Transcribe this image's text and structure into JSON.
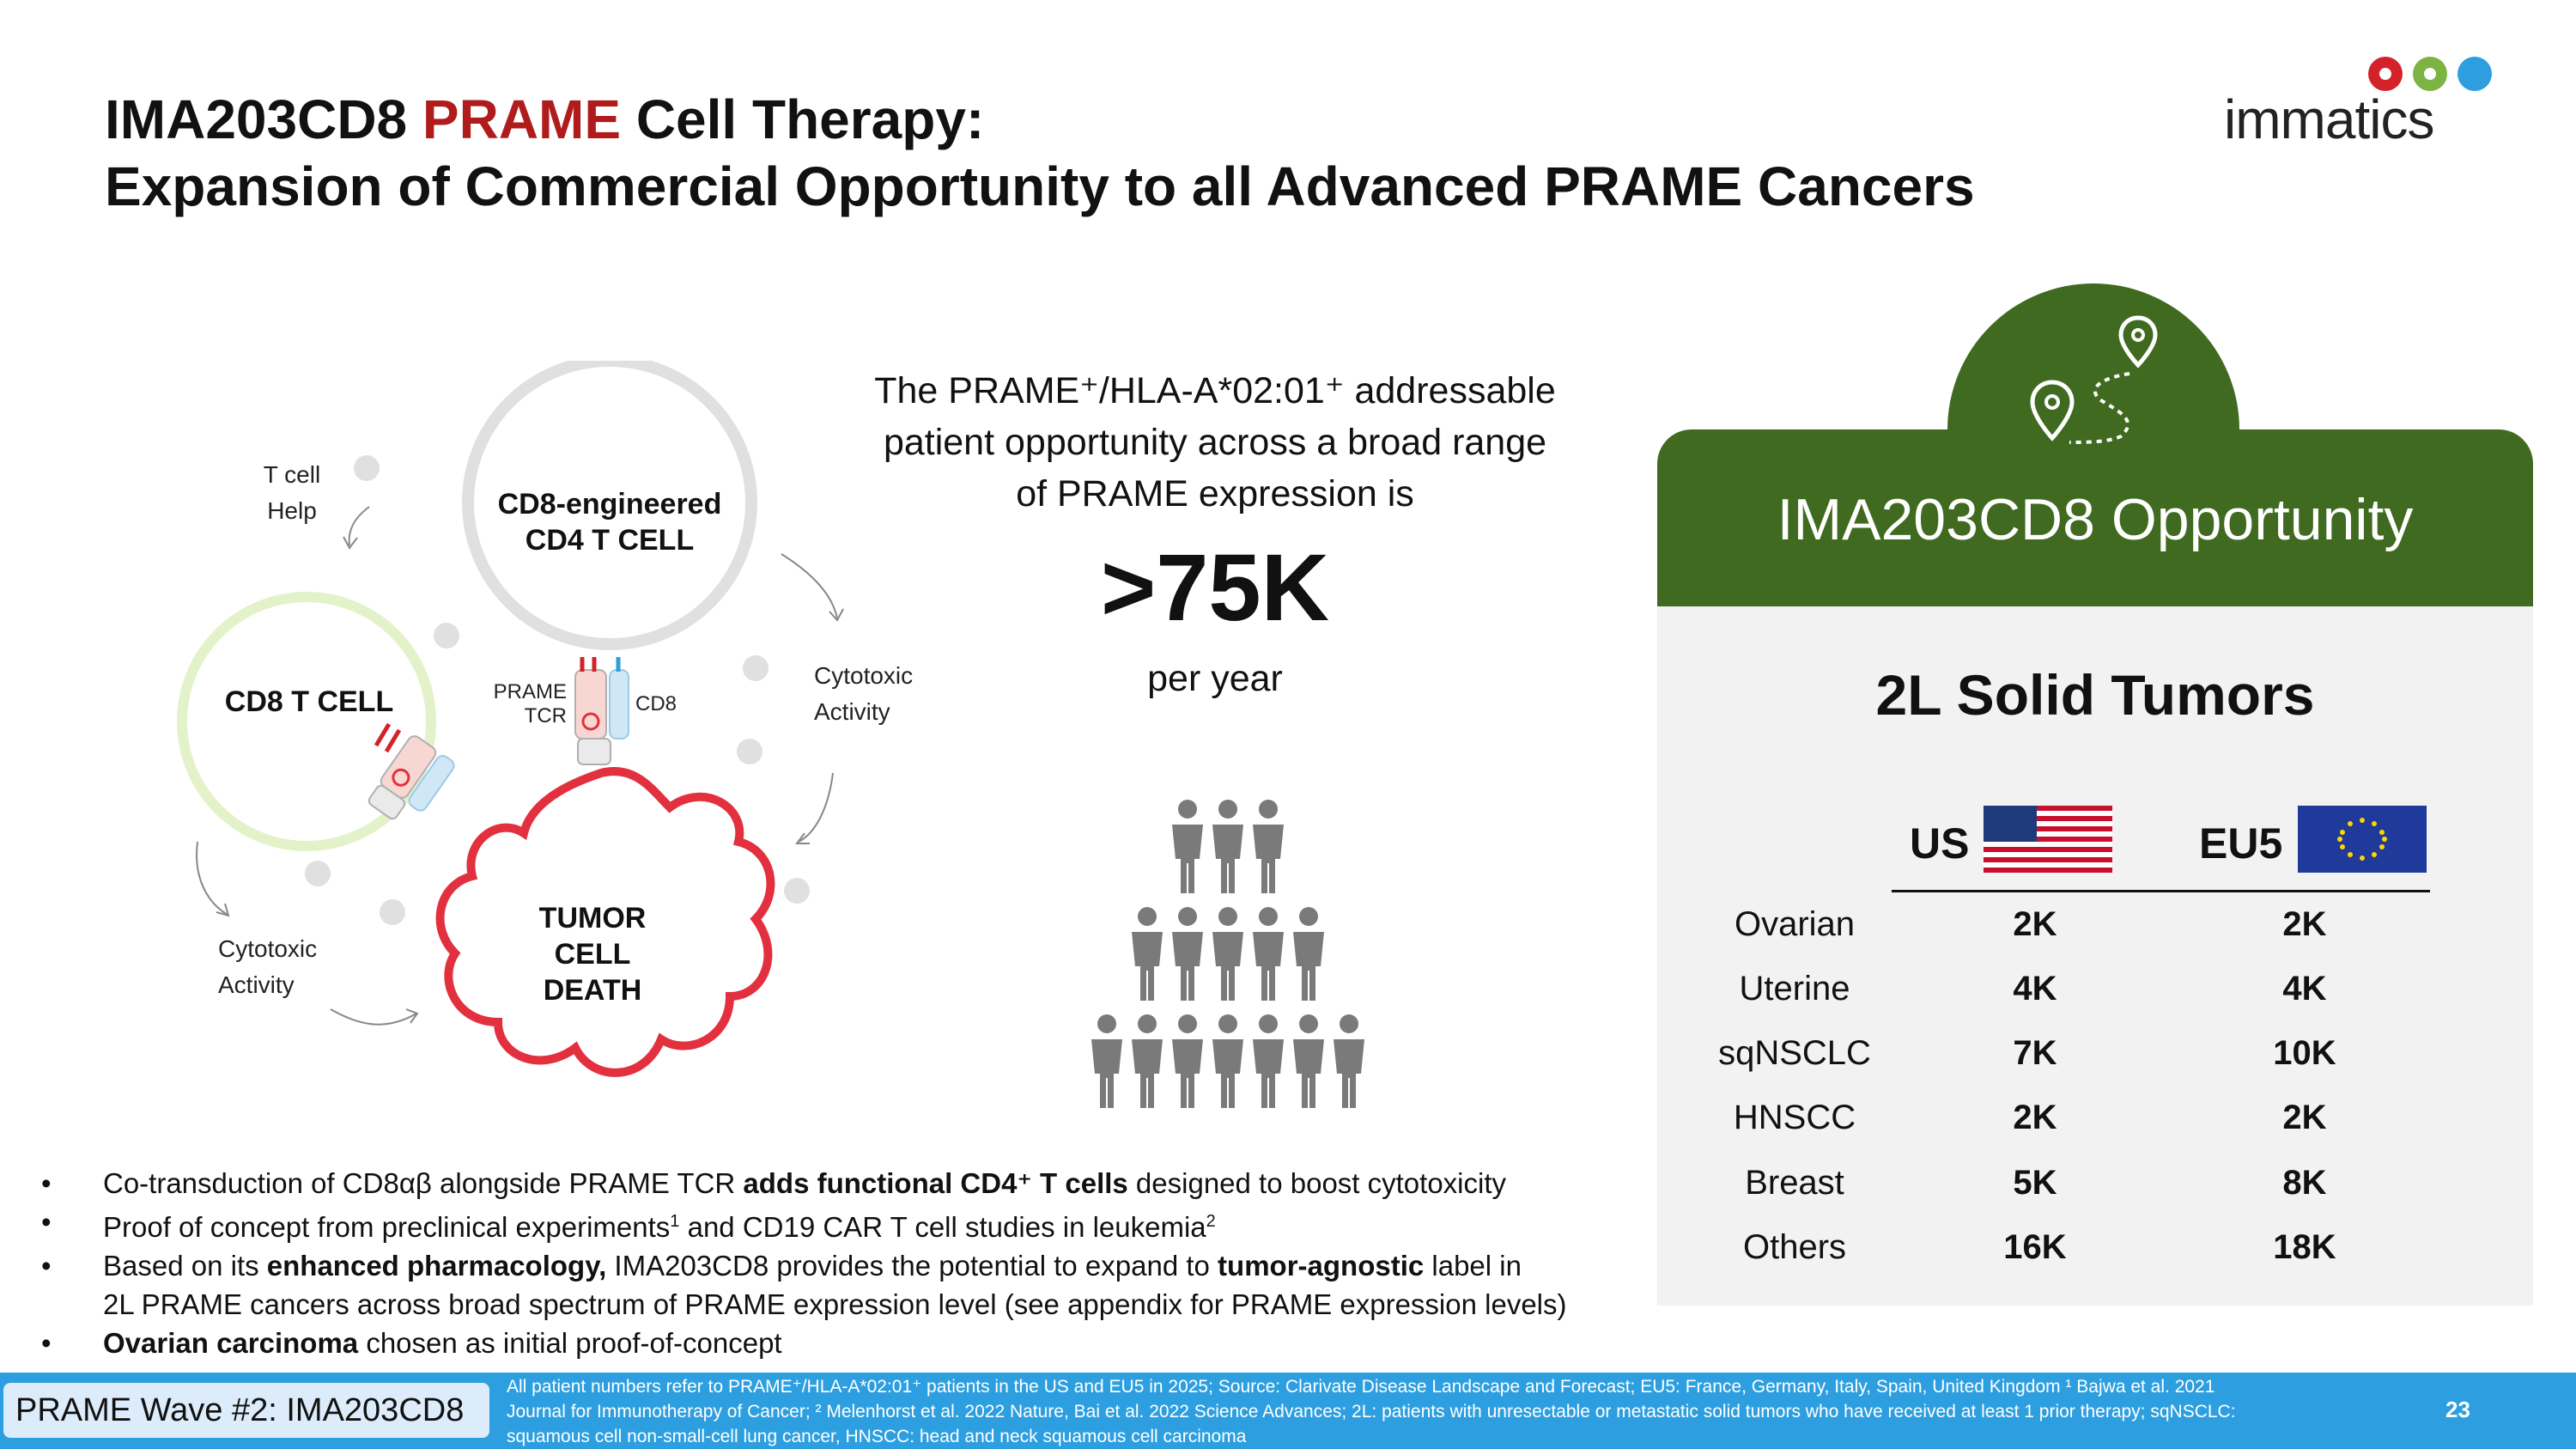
{
  "title": {
    "line1_pre": "IMA203CD8 ",
    "line1_accent": "PRAME",
    "line1_post": " Cell Therapy:",
    "line2": "Expansion of Commercial Opportunity to all Advanced PRAME Cancers"
  },
  "logo": {
    "text": "immatics"
  },
  "diagram": {
    "cd4_cell": [
      "CD8-engineered",
      "CD4 T CELL"
    ],
    "cd8_cell": "CD8 T CELL",
    "tumor": [
      "TUMOR CELL",
      "DEATH"
    ],
    "t_help": [
      "T cell",
      "Help"
    ],
    "cytotoxic_right": [
      "Cytotoxic",
      "Activity"
    ],
    "cytotoxic_left": [
      "Cytotoxic",
      "Activity"
    ],
    "prame_tcr": [
      "PRAME",
      "TCR"
    ],
    "cd8_label": "CD8"
  },
  "stats": {
    "intro_line1": "The PRAME⁺/HLA-A*02:01⁺ addressable",
    "intro_line2": "patient opportunity across a broad range",
    "intro_line3": "of PRAME expression is",
    "big": ">75K",
    "unit": "per year"
  },
  "panel": {
    "title": "IMA203CD8 Opportunity",
    "section": "2L Solid Tumors",
    "columns": [
      "US",
      "EU5"
    ],
    "rows": [
      {
        "label": "Ovarian",
        "us": "2K",
        "eu": "2K"
      },
      {
        "label": "Uterine",
        "us": "4K",
        "eu": "4K"
      },
      {
        "label": "sqNSCLC",
        "us": "7K",
        "eu": "10K"
      },
      {
        "label": "HNSCC",
        "us": "2K",
        "eu": "2K"
      },
      {
        "label": "Breast",
        "us": "5K",
        "eu": "8K"
      },
      {
        "label": "Others",
        "us": "16K",
        "eu": "18K"
      }
    ],
    "colors": {
      "green": "#3f6a1f",
      "panel_bg": "#f2f2f2"
    }
  },
  "bullets": {
    "b1_pre": "Co-transduction of CD8αβ alongside PRAME TCR ",
    "b1_bold": "adds functional CD4⁺ T cells",
    "b1_post": " designed to boost cytotoxicity",
    "b2_pre": "Proof of concept from preclinical experiments",
    "b2_sup1": "1",
    "b2_mid": " and CD19 CAR T cell studies in leukemia",
    "b2_sup2": "2",
    "b3_pre": "Based on its ",
    "b3_bold1": "enhanced pharmacology,",
    "b3_mid": " IMA203CD8 provides the potential to expand to ",
    "b3_bold2": "tumor-agnostic",
    "b3_post": " label in",
    "b3_line2": "2L PRAME cancers across broad spectrum of PRAME expression level (see appendix for PRAME expression levels)",
    "b4_bold": "Ovarian carcinoma",
    "b4_post": " chosen as initial proof-of-concept"
  },
  "footer": {
    "wave": "PRAME Wave #2: IMA203CD8",
    "note_line1": "All patient numbers refer to PRAME⁺/HLA-A*02:01⁺ patients in the US and EU5 in 2025;  Source: Clarivate Disease Landscape and Forecast; EU5: France, Germany, Italy, Spain, United Kingdom ¹ Bajwa et al. 2021",
    "note_line2": "Journal for Immunotherapy of Cancer; ² Melenhorst et al. 2022 Nature, Bai et al. 2022 Science Advances; 2L: patients with unresectable or metastatic solid tumors who have received at least 1 prior therapy; sqNSCLC:",
    "note_line3": "squamous cell non-small-cell lung cancer, HNSCC: head and neck squamous cell carcinoma",
    "page": "23"
  }
}
